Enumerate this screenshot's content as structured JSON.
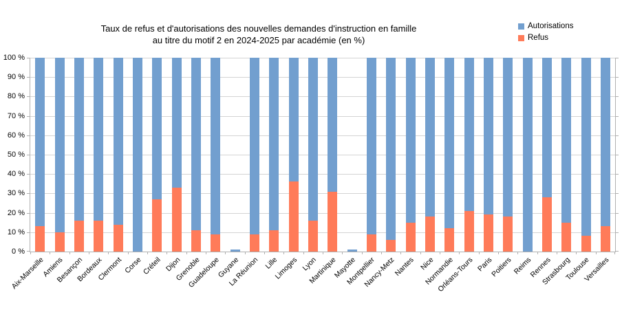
{
  "title": {
    "line1": "Taux de refus et d'autorisations des nouvelles demandes d'instruction en famille",
    "line2": "au titre du motif 2 en 2024-2025 par académie (en %)"
  },
  "legend": {
    "position": "top-right",
    "items": [
      {
        "label": "Autorisations",
        "color": "#729FCF"
      },
      {
        "label": "Refus",
        "color": "#FF7B59"
      }
    ]
  },
  "chart_data": {
    "type": "bar",
    "stacked": true,
    "unit": "%",
    "title": "Taux de refus et d'autorisations des nouvelles demandes d'instruction en famille au titre du motif 2 en 2024-2025 par académie (en %)",
    "categories": [
      "Aix-Marseille",
      "Amiens",
      "Besançon",
      "Bordeaux",
      "Clermont",
      "Corse",
      "Créteil",
      "Dijon",
      "Grenoble",
      "Guadeloupe",
      "Guyane",
      "La Réunion",
      "Lille",
      "Limoges",
      "Lyon",
      "Martinique",
      "Mayotte",
      "Montpellier",
      "Nancy-Metz",
      "Nantes",
      "Nice",
      "Normandie",
      "Orléans-Tours",
      "Paris",
      "Poitiers",
      "Reims",
      "Rennes",
      "Strasbourg",
      "Toulouse",
      "Versailles"
    ],
    "series": [
      {
        "name": "Autorisations",
        "color": "#729FCF",
        "values": [
          87,
          90,
          84,
          84,
          86,
          100,
          73,
          67,
          89,
          91,
          1,
          91,
          89,
          64,
          84,
          69,
          1,
          91,
          94,
          85,
          82,
          88,
          79,
          81,
          82,
          100,
          72,
          85,
          92,
          87
        ]
      },
      {
        "name": "Refus",
        "color": "#FF7B59",
        "values": [
          13,
          10,
          16,
          16,
          14,
          0,
          27,
          33,
          11,
          9,
          0,
          9,
          11,
          36,
          16,
          31,
          0,
          9,
          6,
          15,
          18,
          12,
          21,
          19,
          18,
          0,
          28,
          15,
          8,
          13
        ]
      }
    ],
    "no_data_categories": [
      "Guyane",
      "Mayotte"
    ],
    "y_axis": {
      "min": 0,
      "max": 100,
      "step": 10,
      "tick_suffix": " %",
      "tick_labels": [
        "0 %",
        "10 %",
        "20 %",
        "30 %",
        "40 %",
        "50 %",
        "60 %",
        "70 %",
        "80 %",
        "90 %",
        "100 %"
      ]
    },
    "grid": true,
    "legend_position": "top-right",
    "colors": {
      "gridline": "#d3d3d3",
      "axis": "#b0b0b0",
      "text": "#000000"
    }
  }
}
